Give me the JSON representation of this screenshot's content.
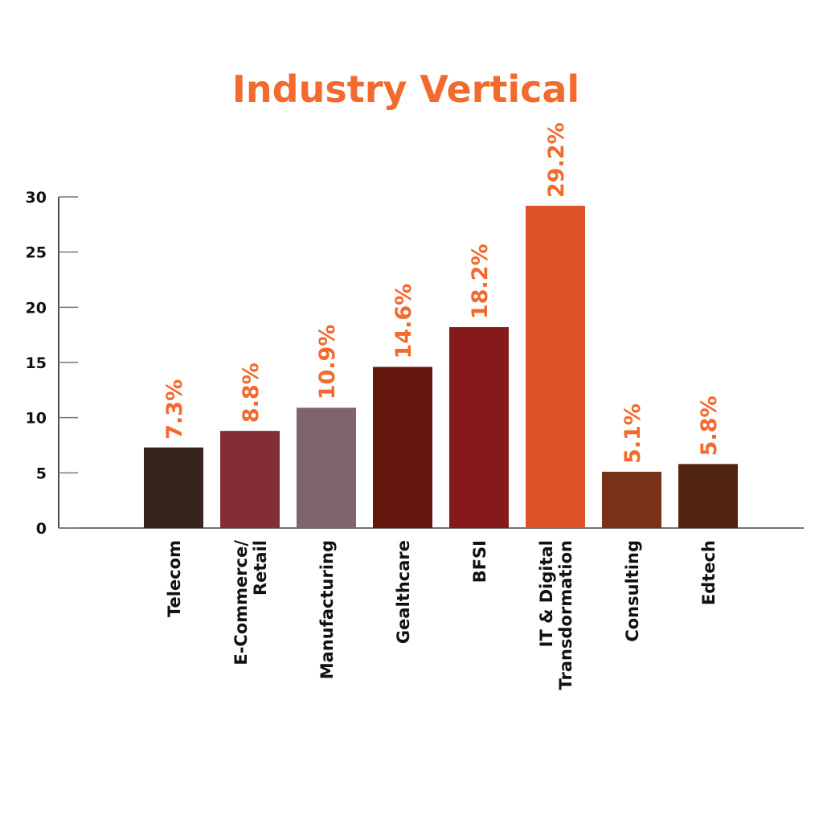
{
  "chart_data": {
    "type": "bar",
    "title": "Industry Vertical",
    "xlabel": "",
    "ylabel": "",
    "ylim": [
      0,
      30
    ],
    "yticks": [
      0,
      5,
      10,
      15,
      20,
      25,
      30
    ],
    "grid": false,
    "categories": [
      "Telecom",
      "E-Commerce/ Retail",
      "Manufacturing",
      "Gealthcare",
      "BFSI",
      "IT & Digital Transdormation",
      "Consulting",
      "Edtech"
    ],
    "category_lines": [
      [
        "Telecom"
      ],
      [
        "E-Commerce/",
        "Retail"
      ],
      [
        "Manufacturing"
      ],
      [
        "Gealthcare"
      ],
      [
        "BFSI"
      ],
      [
        "IT & Digital",
        "Transdormation"
      ],
      [
        "Consulting"
      ],
      [
        "Edtech"
      ]
    ],
    "values": [
      7.3,
      8.8,
      10.9,
      14.6,
      18.2,
      29.2,
      5.1,
      5.8
    ],
    "data_labels": [
      "7.3%",
      "8.8%",
      "10.9%",
      "14.6%",
      "18.2%",
      "29.2%",
      "5.1%",
      "5.8%"
    ],
    "colors": [
      "#35251d",
      "#822d37",
      "#7f636d",
      "#66180f",
      "#86191a",
      "#dd5327",
      "#78321a",
      "#512510"
    ],
    "title_color": "#f26a2e",
    "label_color": "#f26a2e"
  }
}
